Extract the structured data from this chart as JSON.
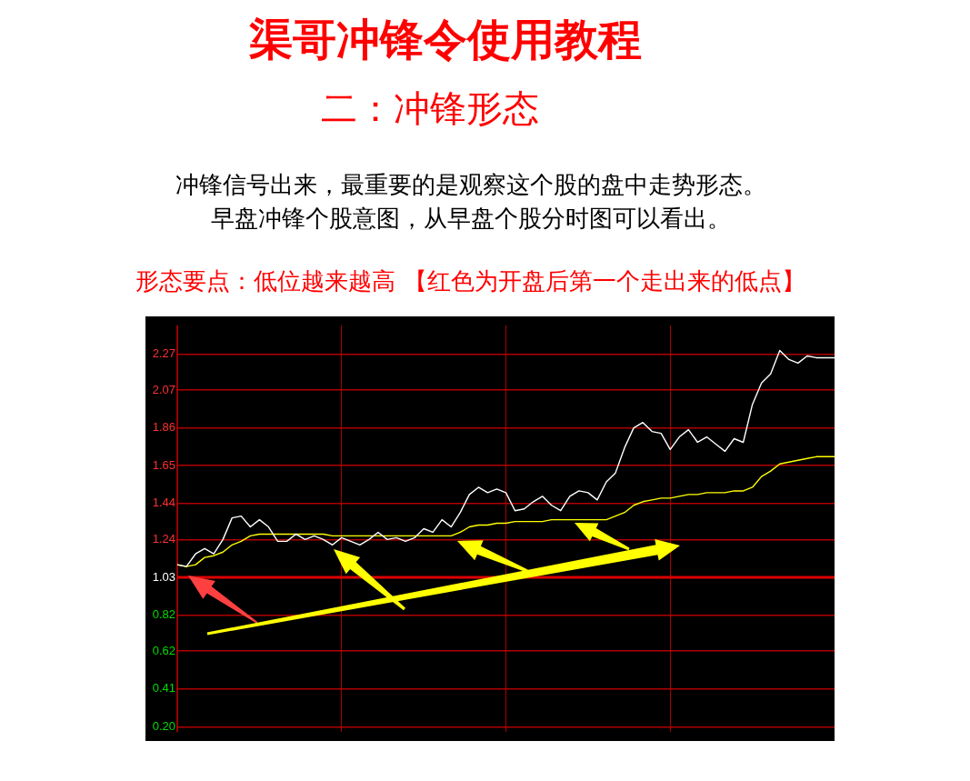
{
  "chart_data": {
    "type": "line",
    "title": "渠哥冲锋令使用教程",
    "subtitle": "二：冲锋形态",
    "annotations": [
      "冲锋信号出来，最重要的是观察这个股的盘中走势形态。",
      "早盘冲锋个股意图，从早盘个股分时图可以看出。",
      "形态要点：低位越来越高 【红色为开盘后第一个走出来的低点】"
    ],
    "categories": [
      null,
      null,
      null,
      null,
      null,
      null,
      null,
      null,
      null,
      null,
      null,
      null,
      null,
      null,
      null,
      null,
      null,
      null,
      null,
      null,
      null,
      null,
      null,
      null,
      null,
      null,
      null,
      null,
      null,
      null,
      null,
      null,
      null,
      null,
      null,
      null,
      null,
      null,
      null,
      null,
      null,
      null,
      null,
      null,
      null,
      null,
      null,
      null,
      null,
      null,
      null,
      null,
      null,
      null,
      null,
      null,
      null,
      null,
      null,
      null,
      null,
      null,
      null,
      null,
      null,
      null,
      null,
      null,
      null,
      null,
      null,
      null,
      null
    ],
    "series": [
      {
        "color": "#ffffff",
        "values": [
          1.1,
          1.09,
          1.16,
          1.19,
          1.16,
          1.24,
          1.36,
          1.37,
          1.31,
          1.35,
          1.31,
          1.23,
          1.23,
          1.27,
          1.24,
          1.26,
          1.24,
          1.21,
          1.25,
          1.23,
          1.21,
          1.24,
          1.28,
          1.24,
          1.25,
          1.23,
          1.25,
          1.3,
          1.28,
          1.35,
          1.31,
          1.39,
          1.49,
          1.53,
          1.5,
          1.52,
          1.5,
          1.4,
          1.41,
          1.45,
          1.48,
          1.43,
          1.4,
          1.48,
          1.51,
          1.5,
          1.46,
          1.56,
          1.61,
          1.75,
          1.86,
          1.89,
          1.84,
          1.83,
          1.74,
          1.81,
          1.85,
          1.78,
          1.81,
          1.77,
          1.73,
          1.8,
          1.78,
          1.99,
          2.11,
          2.16,
          2.29,
          2.24,
          2.22,
          2.26,
          2.25,
          2.25,
          2.25
        ]
      },
      {
        "color": "#ffff00",
        "values": [
          1.1,
          1.09,
          1.1,
          1.14,
          1.15,
          1.17,
          1.21,
          1.23,
          1.26,
          1.27,
          1.27,
          1.27,
          1.27,
          1.27,
          1.27,
          1.27,
          1.27,
          1.26,
          1.26,
          1.26,
          1.26,
          1.26,
          1.26,
          1.26,
          1.26,
          1.26,
          1.26,
          1.26,
          1.26,
          1.26,
          1.26,
          1.28,
          1.31,
          1.32,
          1.32,
          1.33,
          1.33,
          1.34,
          1.34,
          1.34,
          1.34,
          1.35,
          1.35,
          1.35,
          1.35,
          1.35,
          1.35,
          1.35,
          1.37,
          1.39,
          1.43,
          1.45,
          1.46,
          1.47,
          1.47,
          1.48,
          1.49,
          1.49,
          1.5,
          1.5,
          1.5,
          1.51,
          1.51,
          1.53,
          1.59,
          1.62,
          1.66,
          1.67,
          1.68,
          1.69,
          1.7,
          1.7,
          1.7
        ]
      }
    ],
    "ylim": [
      0.17,
      2.43
    ],
    "yticks": [
      {
        "value": 0.2,
        "label": "0.20"
      },
      0.41,
      0.62,
      0.82,
      1.03,
      1.24,
      1.44,
      1.65,
      1.86,
      2.07,
      2.27
    ],
    "ref_lines": [
      {
        "axis": "y",
        "value": 1.03,
        "color": "#dd0000"
      }
    ],
    "grid": true,
    "legend": false,
    "marker": "none",
    "line_style": "solid"
  }
}
